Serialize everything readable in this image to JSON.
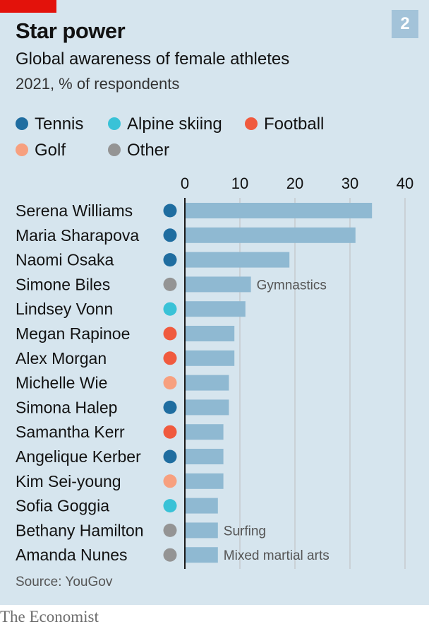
{
  "header": {
    "chart_number": "2",
    "title": "Star power",
    "subtitle": "Global awareness of female athletes",
    "units": "2021, % of respondents"
  },
  "legend": [
    {
      "label": "Tennis",
      "color": "#1f6da0"
    },
    {
      "label": "Alpine skiing",
      "color": "#39c2d7"
    },
    {
      "label": "Football",
      "color": "#f05a3e"
    },
    {
      "label": "Golf",
      "color": "#f7a07f"
    },
    {
      "label": "Other",
      "color": "#949494"
    }
  ],
  "colors": {
    "bar": "#8fb9d2",
    "gridline": "#bdbdbd",
    "axis": "#1a1a1a",
    "background": "#d6e5ee"
  },
  "source": "Source: YouGov",
  "footer": "The Economist",
  "chart_data": {
    "type": "bar",
    "orientation": "horizontal",
    "title": "Star power",
    "subtitle": "Global awareness of female athletes",
    "xlabel": "2021, % of respondents",
    "ylabel": "",
    "xlim": [
      0,
      40
    ],
    "xticks": [
      0,
      10,
      20,
      30,
      40
    ],
    "grid": true,
    "categories": [
      "Serena Williams",
      "Maria Sharapova",
      "Naomi Osaka",
      "Simone Biles",
      "Lindsey Vonn",
      "Megan Rapinoe",
      "Alex Morgan",
      "Michelle Wie",
      "Simona Halep",
      "Samantha Kerr",
      "Angelique Kerber",
      "Kim Sei-young",
      "Sofia Goggia",
      "Bethany Hamilton",
      "Amanda Nunes"
    ],
    "values": [
      34,
      31,
      19,
      12,
      11,
      9,
      9,
      8,
      8,
      7,
      7,
      7,
      6,
      6,
      6
    ],
    "sports": [
      "Tennis",
      "Tennis",
      "Tennis",
      "Other",
      "Alpine skiing",
      "Football",
      "Football",
      "Golf",
      "Tennis",
      "Football",
      "Tennis",
      "Golf",
      "Alpine skiing",
      "Other",
      "Other"
    ],
    "annotations": [
      "",
      "",
      "",
      "Gymnastics",
      "",
      "",
      "",
      "",
      "",
      "",
      "",
      "",
      "",
      "Surfing",
      "Mixed martial arts"
    ]
  }
}
